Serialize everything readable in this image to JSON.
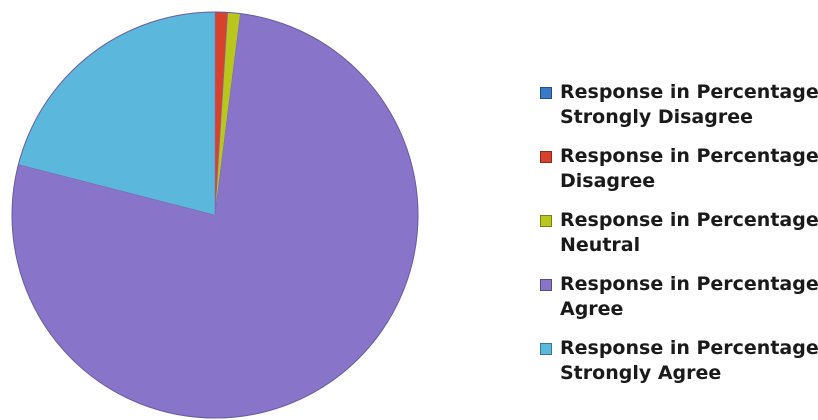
{
  "chart_data": {
    "type": "pie",
    "title": "",
    "series_prefix": "Response in Percentage",
    "slices": [
      {
        "label": "Strongly Disagree",
        "value": 0,
        "color": "#3a78c8"
      },
      {
        "label": "Disagree",
        "value": 1,
        "color": "#d8412c"
      },
      {
        "label": "Neutral",
        "value": 1,
        "color": "#b9c71d"
      },
      {
        "label": "Agree",
        "value": 77,
        "color": "#8874c8"
      },
      {
        "label": "Strongly Agree",
        "value": 21,
        "color": "#5bb8dc"
      }
    ],
    "legend_position": "right"
  }
}
